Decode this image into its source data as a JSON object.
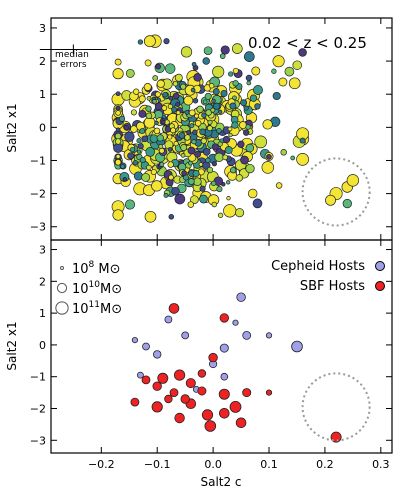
{
  "chart_data": [
    {
      "type": "scatter",
      "panel": "top",
      "ylabel": "Salt2 x1",
      "xlabel": "",
      "xlim": [
        -0.29,
        0.32
      ],
      "ylim": [
        -3.4,
        3.3
      ],
      "yticks": [
        3,
        2,
        1,
        0,
        -1,
        -2,
        -3
      ],
      "ytick_labels": [
        "3",
        "2",
        "1",
        "0",
        "−1",
        "−2",
        "−3"
      ],
      "annotation": "0.02 < z < 0.25",
      "error_label": "median\nerrors",
      "median_error": {
        "x": -0.25,
        "y": 2.35,
        "dx": 0.02,
        "dy": 0.15
      },
      "circle_center": [
        0.22,
        -1.95
      ],
      "circle_radius": 0.06,
      "random_cloud": {
        "count": 520,
        "x_center": -0.05,
        "x_sd": 0.08,
        "y_center": -0.2,
        "y_sd": 1.05
      },
      "circle_points": [
        {
          "x": 0.22,
          "y": -2.0,
          "mass": 11.0,
          "color": "#f4e535"
        },
        {
          "x": 0.24,
          "y": -1.8,
          "mass": 10.5,
          "color": "#f4e535"
        },
        {
          "x": 0.21,
          "y": -2.2,
          "mass": 10.3,
          "color": "#f4e535"
        },
        {
          "x": 0.25,
          "y": -1.6,
          "mass": 10.8,
          "color": "#f4e535"
        },
        {
          "x": 0.24,
          "y": -2.3,
          "mass": 9.8,
          "color": "#58b87c"
        }
      ]
    },
    {
      "type": "scatter",
      "panel": "bottom",
      "ylabel": "Salt2 x1",
      "xlabel": "Salt2 c",
      "xlim": [
        -0.29,
        0.32
      ],
      "ylim": [
        -3.4,
        3.3
      ],
      "xticks": [
        -0.2,
        -0.1,
        0.0,
        0.1,
        0.2,
        0.3
      ],
      "xtick_labels": [
        "−0.2",
        "−0.1",
        "0.0",
        "0.1",
        "0.2",
        "0.3"
      ],
      "yticks": [
        3,
        2,
        1,
        0,
        -1,
        -2,
        -3
      ],
      "ytick_labels": [
        "3",
        "2",
        "1",
        "0",
        "−1",
        "−2",
        "−3"
      ],
      "circle_center": [
        0.22,
        -1.95
      ],
      "circle_radius": 0.06,
      "size_legend": [
        {
          "label": "10",
          "exp": "8",
          "unit": " M⊙",
          "mass": 8
        },
        {
          "label": "10",
          "exp": "10",
          "unit": "M⊙",
          "mass": 10
        },
        {
          "label": "10",
          "exp": "11",
          "unit": "M⊙",
          "mass": 11
        }
      ],
      "series": [
        {
          "name": "Cepheid Hosts",
          "color": "#0000ee",
          "marker_color": "#a0a0e8",
          "points": [
            {
              "x": 0.05,
              "y": 1.5,
              "mass": 9.8
            },
            {
              "x": -0.08,
              "y": 0.8,
              "mass": 9.3
            },
            {
              "x": -0.05,
              "y": 0.3,
              "mass": 9.3
            },
            {
              "x": -0.12,
              "y": -0.05,
              "mass": 9.3
            },
            {
              "x": -0.1,
              "y": -0.3,
              "mass": 9.5
            },
            {
              "x": 0.0,
              "y": -0.6,
              "mass": 9.4
            },
            {
              "x": 0.02,
              "y": -0.1,
              "mass": 9.7
            },
            {
              "x": 0.06,
              "y": 0.3,
              "mass": 9.6
            },
            {
              "x": 0.1,
              "y": 0.3,
              "mass": 8.8
            },
            {
              "x": -0.14,
              "y": 0.15,
              "mass": 8.8
            },
            {
              "x": 0.04,
              "y": 0.7,
              "mass": 8.8
            },
            {
              "x": 0.15,
              "y": -0.05,
              "mass": 10.5
            },
            {
              "x": 0.02,
              "y": -1.0,
              "mass": 9.2
            },
            {
              "x": -0.03,
              "y": -1.4,
              "mass": 9.0
            },
            {
              "x": -0.13,
              "y": -0.95,
              "mass": 9.0
            }
          ]
        },
        {
          "name": "SBF Hosts",
          "color": "#ee0000",
          "marker_color": "#ee2222",
          "points": [
            {
              "x": -0.07,
              "y": 1.15,
              "mass": 10.2
            },
            {
              "x": 0.02,
              "y": 0.85,
              "mass": 9.8
            },
            {
              "x": 0.0,
              "y": -0.4,
              "mass": 9.8
            },
            {
              "x": -0.02,
              "y": -0.9,
              "mass": 9.5
            },
            {
              "x": -0.14,
              "y": -1.8,
              "mass": 9.6
            },
            {
              "x": -0.12,
              "y": -1.1,
              "mass": 9.6
            },
            {
              "x": -0.1,
              "y": -1.3,
              "mass": 9.8
            },
            {
              "x": -0.09,
              "y": -1.05,
              "mass": 10.3
            },
            {
              "x": -0.06,
              "y": -0.95,
              "mass": 10.4
            },
            {
              "x": -0.04,
              "y": -1.2,
              "mass": 10.0
            },
            {
              "x": -0.1,
              "y": -1.95,
              "mass": 10.4
            },
            {
              "x": -0.07,
              "y": -1.5,
              "mass": 9.6
            },
            {
              "x": -0.05,
              "y": -1.7,
              "mass": 9.8
            },
            {
              "x": -0.04,
              "y": -1.85,
              "mass": 10.2
            },
            {
              "x": -0.02,
              "y": -1.45,
              "mass": 9.7
            },
            {
              "x": -0.06,
              "y": -2.3,
              "mass": 10.1
            },
            {
              "x": -0.01,
              "y": -2.2,
              "mass": 10.4
            },
            {
              "x": -0.005,
              "y": -2.55,
              "mass": 10.5
            },
            {
              "x": 0.02,
              "y": -2.15,
              "mass": 10.2
            },
            {
              "x": 0.02,
              "y": -1.55,
              "mass": 10.3
            },
            {
              "x": 0.04,
              "y": -1.95,
              "mass": 10.6
            },
            {
              "x": 0.06,
              "y": -1.5,
              "mass": 9.7
            },
            {
              "x": 0.05,
              "y": -2.45,
              "mass": 10.2
            },
            {
              "x": 0.1,
              "y": -1.5,
              "mass": 8.8
            },
            {
              "x": 0.22,
              "y": -2.9,
              "mass": 10.3
            },
            {
              "x": -0.08,
              "y": -1.7,
              "mass": 9.5
            }
          ]
        }
      ]
    }
  ]
}
